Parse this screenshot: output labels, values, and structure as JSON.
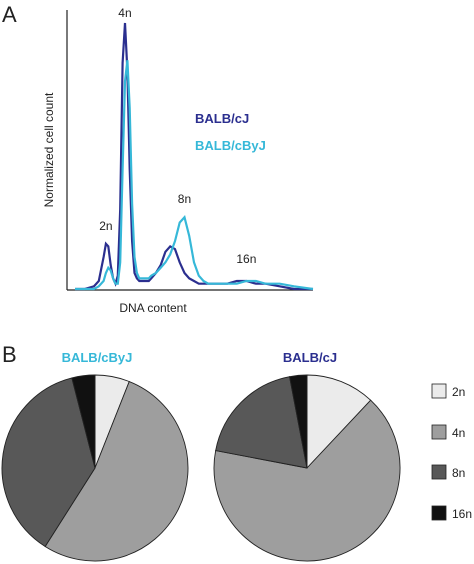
{
  "colors": {
    "balbcj": "#2b2f8f",
    "balbcbyj": "#36b8d8",
    "slice_2n": "#ebebeb",
    "slice_4n": "#9e9e9e",
    "slice_8n": "#585858",
    "slice_16n": "#111111",
    "axis": "#222222"
  },
  "panel_a": {
    "letter": "A"
  },
  "panel_b": {
    "letter": "B"
  },
  "chart_data": [
    {
      "type": "line",
      "panel": "A",
      "xlabel": "DNA content",
      "ylabel": "Normalized cell count",
      "grid": false,
      "axes": "left and bottom only, no ticks",
      "peak_labels": [
        "2n",
        "4n",
        "8n",
        "16n"
      ],
      "x": [
        0.0,
        0.04,
        0.08,
        0.1,
        0.12,
        0.13,
        0.14,
        0.15,
        0.16,
        0.17,
        0.18,
        0.19,
        0.2,
        0.21,
        0.22,
        0.23,
        0.24,
        0.25,
        0.26,
        0.27,
        0.28,
        0.29,
        0.3,
        0.31,
        0.32,
        0.34,
        0.36,
        0.38,
        0.4,
        0.42,
        0.44,
        0.46,
        0.48,
        0.5,
        0.52,
        0.54,
        0.56,
        0.58,
        0.6,
        0.64,
        0.68,
        0.72,
        0.76,
        0.8,
        0.86,
        0.92,
        1.0
      ],
      "series": [
        {
          "name": "BALB/cJ",
          "color_key": "balbcj",
          "values": [
            0.0,
            0.0,
            0.01,
            0.03,
            0.12,
            0.17,
            0.16,
            0.09,
            0.04,
            0.02,
            0.05,
            0.3,
            0.85,
            1.0,
            0.82,
            0.45,
            0.18,
            0.06,
            0.04,
            0.03,
            0.03,
            0.03,
            0.03,
            0.03,
            0.04,
            0.06,
            0.09,
            0.14,
            0.16,
            0.15,
            0.1,
            0.06,
            0.04,
            0.03,
            0.02,
            0.02,
            0.02,
            0.02,
            0.02,
            0.02,
            0.03,
            0.03,
            0.02,
            0.02,
            0.01,
            0.0,
            0.0
          ]
        },
        {
          "name": "BALB/cByJ",
          "color_key": "balbcbyj",
          "values": [
            0.0,
            0.0,
            0.0,
            0.01,
            0.03,
            0.06,
            0.08,
            0.07,
            0.04,
            0.02,
            0.02,
            0.1,
            0.45,
            0.78,
            0.86,
            0.68,
            0.32,
            0.12,
            0.06,
            0.04,
            0.04,
            0.04,
            0.04,
            0.04,
            0.05,
            0.06,
            0.08,
            0.1,
            0.13,
            0.18,
            0.25,
            0.27,
            0.2,
            0.1,
            0.05,
            0.03,
            0.02,
            0.02,
            0.02,
            0.02,
            0.02,
            0.03,
            0.03,
            0.02,
            0.02,
            0.01,
            0.0
          ]
        }
      ]
    },
    {
      "type": "pie",
      "panel": "B",
      "title": "BALB/cByJ",
      "title_color_key": "balbcbyj",
      "labels": [
        "2n",
        "4n",
        "8n",
        "16n"
      ],
      "values": [
        6,
        53,
        37,
        4
      ]
    },
    {
      "type": "pie",
      "panel": "B",
      "title": "BALB/cJ",
      "title_color_key": "balbcj",
      "labels": [
        "2n",
        "4n",
        "8n",
        "16n"
      ],
      "values": [
        12,
        66,
        19,
        3
      ]
    }
  ]
}
